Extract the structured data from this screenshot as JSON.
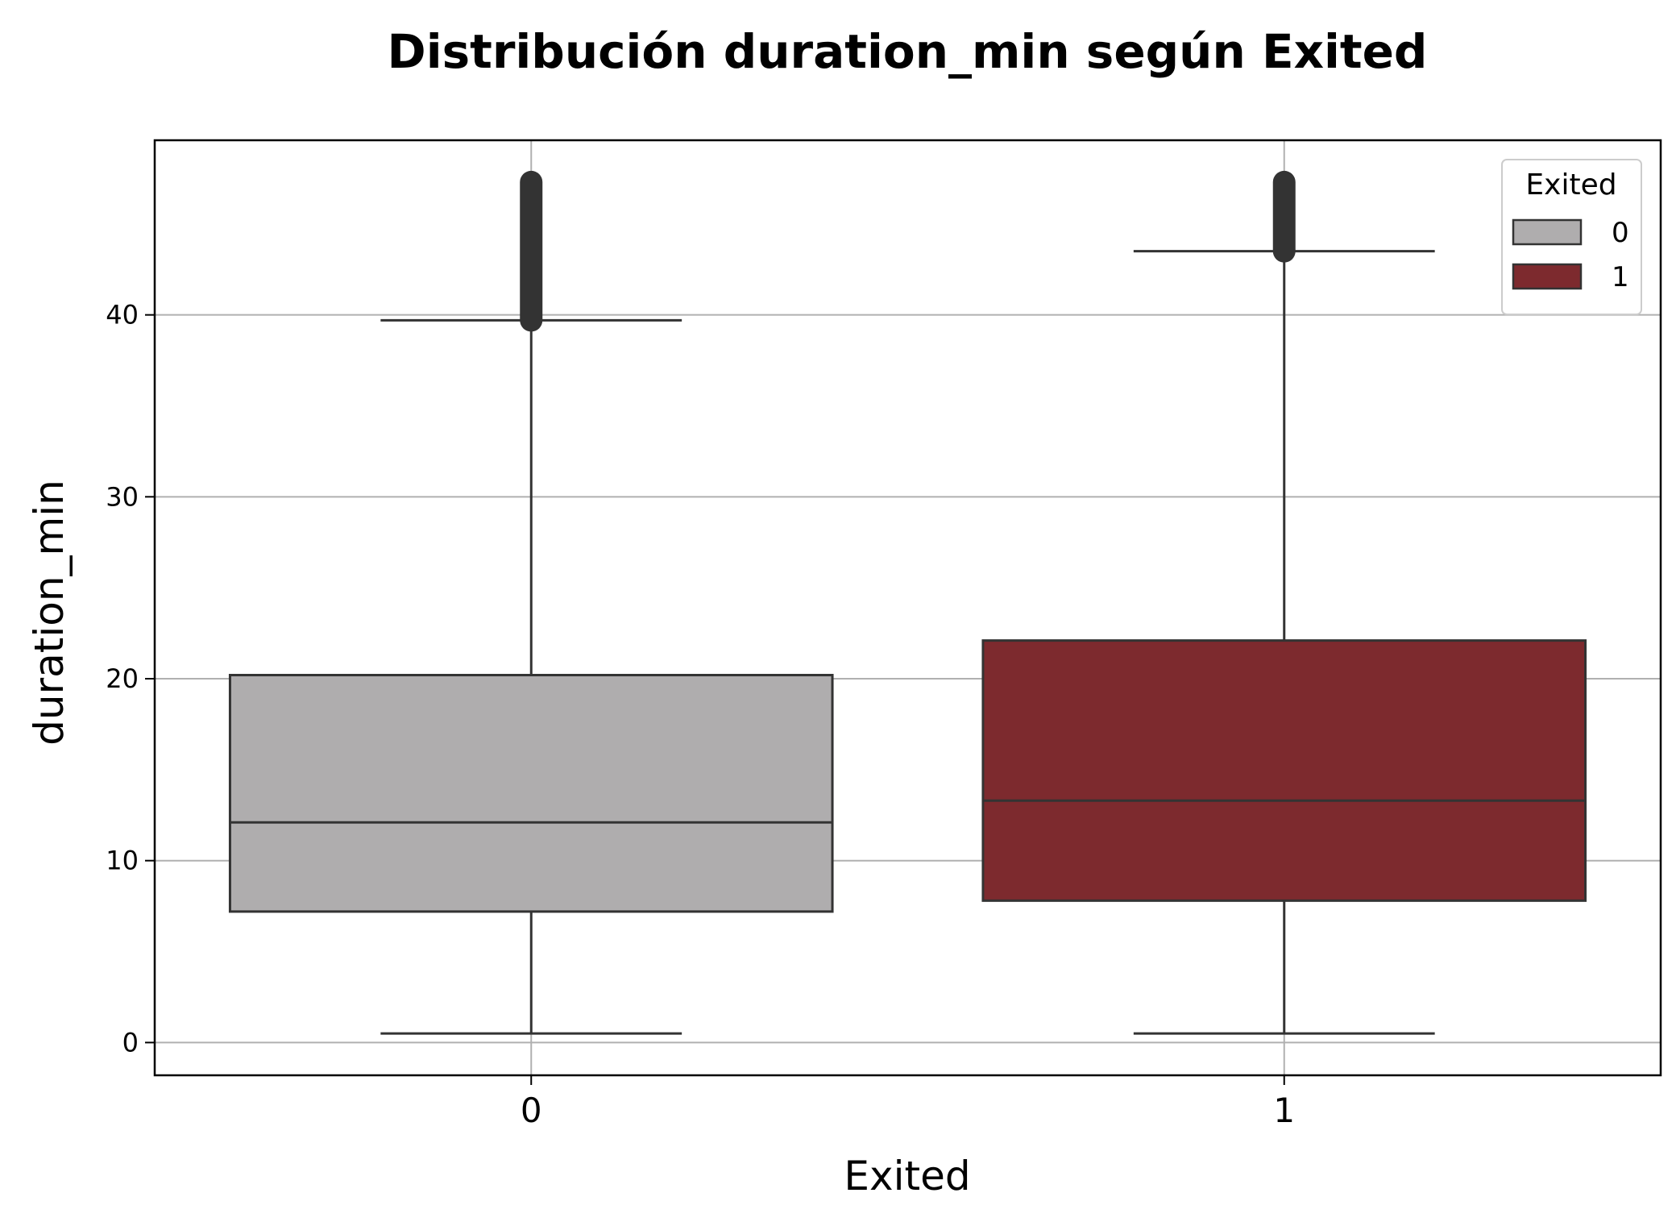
{
  "chart_data": {
    "type": "box",
    "title": "Distribución duration_min según Exited",
    "xlabel": "Exited",
    "ylabel": "duration_min",
    "categories": [
      "0",
      "1"
    ],
    "ylim": [
      -1.8,
      49.6
    ],
    "yticks": [
      0,
      10,
      20,
      30,
      40
    ],
    "grid": true,
    "legend": {
      "title": "Exited",
      "placement": "top-right",
      "entries": [
        "0",
        "1"
      ]
    },
    "series": [
      {
        "name": "0",
        "color": "#afadae",
        "whisker_low": 0.5,
        "q1": 7.2,
        "median": 12.1,
        "q3": 20.2,
        "whisker_high": 39.7,
        "outliers_range": [
          39.7,
          47.3
        ]
      },
      {
        "name": "1",
        "color": "#7d2a2e",
        "whisker_low": 0.5,
        "q1": 7.8,
        "median": 13.3,
        "q3": 22.1,
        "whisker_high": 43.5,
        "outliers_range": [
          43.5,
          47.3
        ]
      }
    ]
  }
}
